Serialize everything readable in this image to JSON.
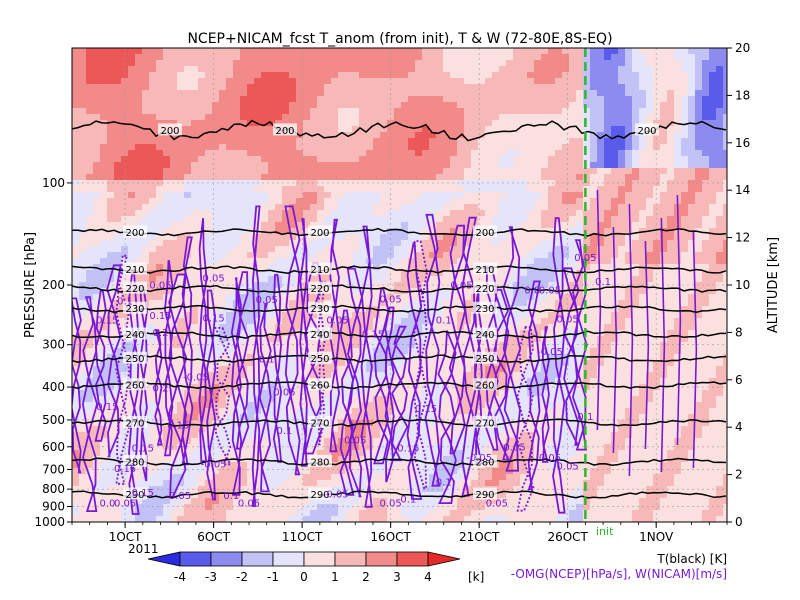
{
  "chart_data": {
    "type": "heatmap",
    "title": "NCEP+NICAM_fcst T_anom (from init), T & W  (72-80E,8S-EQ)",
    "ylabel_left": "PRESSURE [hPa]",
    "ylabel_right": "ALTITUDE [km]",
    "year_label": "2011",
    "init_label": "init",
    "x_ticks": [
      "1OCT",
      "6OCT",
      "11OCT",
      "16OCT",
      "21OCT",
      "26OCT",
      "1NOV"
    ],
    "x_range": [
      "2011-09-28",
      "2011-11-04"
    ],
    "init_date": "2011-10-27",
    "pressure_ticks": [
      100,
      200,
      300,
      400,
      500,
      600,
      700,
      800,
      900,
      1000
    ],
    "pressure_range": [
      1000,
      40
    ],
    "pressure_scale": "log",
    "altitude_ticks": [
      0,
      2,
      4,
      6,
      8,
      10,
      12,
      14,
      16,
      18,
      20
    ],
    "altitude_range": [
      0,
      20
    ],
    "colorbar": {
      "ticks": [
        -4,
        -3,
        -2,
        -1,
        0,
        1,
        2,
        3,
        4
      ],
      "unit": "[k]",
      "colors": [
        "#2a2ae0",
        "#5a5aeb",
        "#8c8cf0",
        "#c2c2f7",
        "#e4e4fb",
        "#fbe0e0",
        "#f7b8b8",
        "#f28a8a",
        "#ec5757",
        "#e52828"
      ]
    },
    "legend": [
      {
        "label": "T(black) [K]",
        "color": "#000000"
      },
      {
        "label": "-OMG(NCEP)[hPa/s], W(NICAM)[m/s]",
        "color": "#7a18d8"
      }
    ],
    "temperature_contours": [
      {
        "pressure": 70,
        "label": "200"
      },
      {
        "pressure": 140,
        "label": "200"
      },
      {
        "pressure": 180,
        "label": "210"
      },
      {
        "pressure": 205,
        "label": "220"
      },
      {
        "pressure": 235,
        "label": "230"
      },
      {
        "pressure": 280,
        "label": "240"
      },
      {
        "pressure": 330,
        "label": "250"
      },
      {
        "pressure": 395,
        "label": "260"
      },
      {
        "pressure": 510,
        "label": "270"
      },
      {
        "pressure": 665,
        "label": "280"
      },
      {
        "pressure": 830,
        "label": "290"
      }
    ],
    "omega_labels": [
      {
        "date": "2011-09-30",
        "pressure": 260,
        "label": "0.15"
      },
      {
        "date": "2011-10-01",
        "pressure": 228,
        "label": "0.1"
      },
      {
        "date": "2011-10-03",
        "pressure": 205,
        "label": "0.05"
      },
      {
        "date": "2011-10-03",
        "pressure": 252,
        "label": "0.15"
      },
      {
        "date": "2011-10-03",
        "pressure": 283,
        "label": "0.2"
      },
      {
        "date": "2011-10-03",
        "pressure": 412,
        "label": "0.2"
      },
      {
        "date": "2011-10-05",
        "pressure": 382,
        "label": "-0.05"
      },
      {
        "date": "2011-10-06",
        "pressure": 195,
        "label": "0.05"
      },
      {
        "date": "2011-10-06",
        "pressure": 256,
        "label": "0.15"
      },
      {
        "date": "2011-10-09",
        "pressure": 226,
        "label": "0.05"
      },
      {
        "date": "2011-10-09",
        "pressure": 338,
        "label": "0.1"
      },
      {
        "date": "2011-10-10",
        "pressure": 424,
        "label": "0.05"
      },
      {
        "date": "2011-10-13",
        "pressure": 260,
        "label": "0.05"
      },
      {
        "date": "2011-10-16",
        "pressure": 225,
        "label": "0.05"
      },
      {
        "date": "2011-10-15",
        "pressure": 286,
        "label": "0.15"
      },
      {
        "date": "2011-10-19",
        "pressure": 260,
        "label": "0.1"
      },
      {
        "date": "2011-10-20",
        "pressure": 205,
        "label": "0.05"
      },
      {
        "date": "2011-10-24",
        "pressure": 212,
        "label": "0.0"
      },
      {
        "date": "2011-10-25",
        "pressure": 212,
        "label": "0.05"
      },
      {
        "date": "2011-10-25",
        "pressure": 322,
        "label": "-0.05"
      },
      {
        "date": "2011-10-18",
        "pressure": 473,
        "label": "0.15"
      },
      {
        "date": "2011-09-30",
        "pressure": 467,
        "label": "0.15"
      },
      {
        "date": "2011-10-10",
        "pressure": 550,
        "label": "0.1"
      },
      {
        "date": "2011-10-14",
        "pressure": 586,
        "label": "0.05"
      },
      {
        "date": "2011-10-17",
        "pressure": 620,
        "label": "0.15"
      },
      {
        "date": "2011-10-02",
        "pressure": 620,
        "label": "0.15"
      },
      {
        "date": "2011-10-06",
        "pressure": 690,
        "label": "-0.05"
      },
      {
        "date": "2011-10-21",
        "pressure": 660,
        "label": "-0.05"
      },
      {
        "date": "2011-10-23",
        "pressure": 615,
        "label": "0.05"
      },
      {
        "date": "2011-10-25",
        "pressure": 660,
        "label": "0.05"
      },
      {
        "date": "2011-10-01",
        "pressure": 712,
        "label": "0.15"
      },
      {
        "date": "2011-10-02",
        "pressure": 837,
        "label": "0.15"
      },
      {
        "date": "2011-10-04",
        "pressure": 855,
        "label": "-0.05"
      },
      {
        "date": "2011-10-13",
        "pressure": 848,
        "label": "0.05"
      },
      {
        "date": "2011-10-17",
        "pressure": 875,
        "label": "0.1"
      },
      {
        "date": "2011-10-19",
        "pressure": 780,
        "label": "0.1"
      },
      {
        "date": "2011-09-30",
        "pressure": 900,
        "label": "0.0"
      },
      {
        "date": "2011-10-01",
        "pressure": 900,
        "label": "0.05"
      },
      {
        "date": "2011-10-07",
        "pressure": 855,
        "label": "0.1"
      },
      {
        "date": "2011-10-08",
        "pressure": 900,
        "label": "0.05"
      },
      {
        "date": "2011-10-16",
        "pressure": 900,
        "label": "0.05"
      },
      {
        "date": "2011-10-22",
        "pressure": 900,
        "label": "0.05"
      },
      {
        "date": "2011-10-27",
        "pressure": 170,
        "label": "0.05"
      },
      {
        "date": "2011-10-28",
        "pressure": 200,
        "label": "0.1"
      },
      {
        "date": "2011-10-26",
        "pressure": 258,
        "label": "0.05"
      },
      {
        "date": "2011-10-27",
        "pressure": 500,
        "label": "0.1"
      },
      {
        "date": "2011-10-26",
        "pressure": 700,
        "label": "0.05"
      },
      {
        "date": "2011-10-04",
        "pressure": 530,
        "label": "0.15"
      }
    ]
  }
}
